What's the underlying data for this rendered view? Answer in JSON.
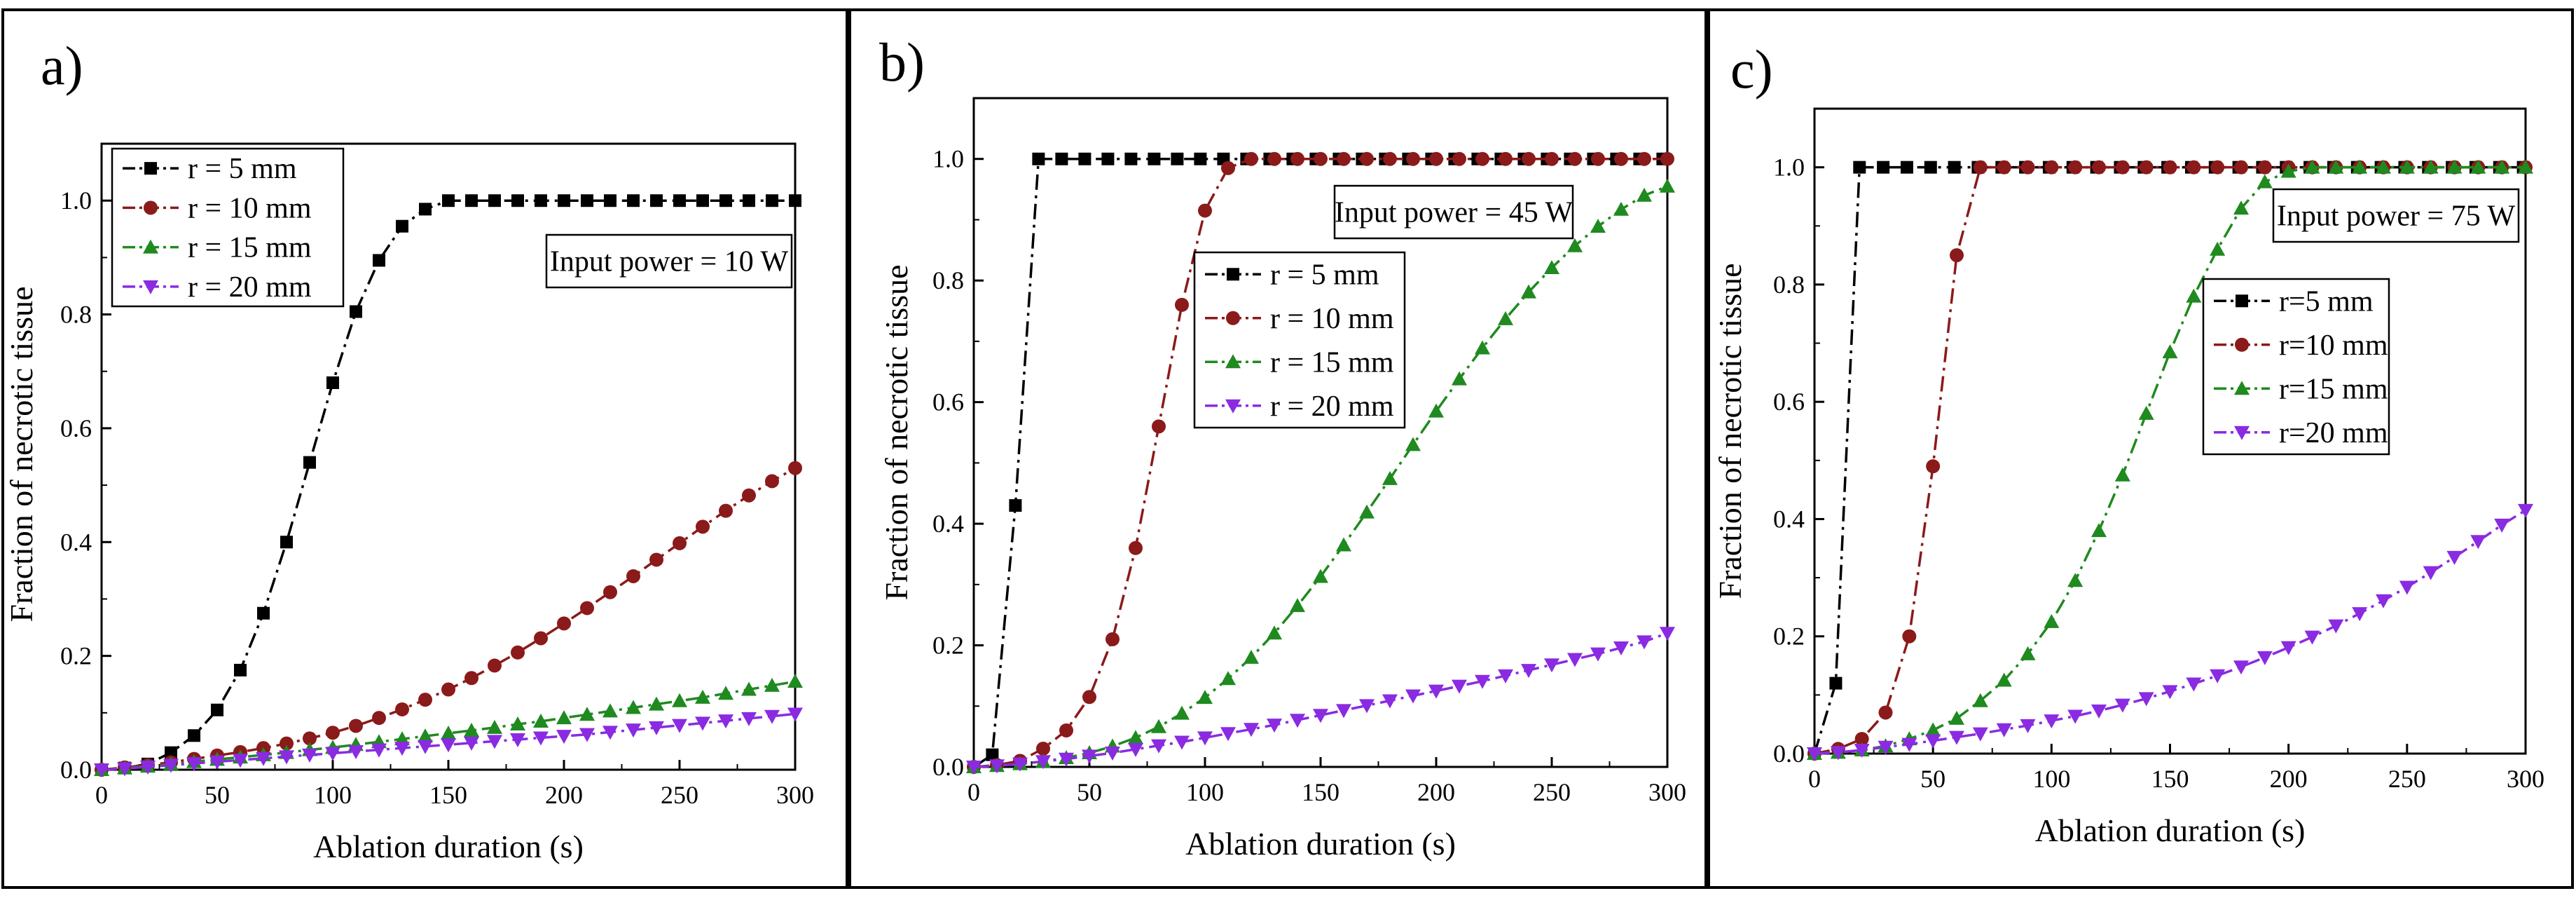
{
  "figure": {
    "panel_labels": [
      "a)",
      "b)",
      "c)"
    ]
  },
  "chart_data": [
    {
      "type": "line",
      "panel": "a)",
      "xlabel": "Ablation duration (s)",
      "ylabel": "Fraction of necrotic tissue",
      "xlim": [
        0,
        300
      ],
      "ylim": [
        0,
        1.1
      ],
      "xticks": [
        0,
        50,
        100,
        150,
        200,
        250,
        300
      ],
      "yticks": [
        0.0,
        0.2,
        0.4,
        0.6,
        0.8,
        1.0
      ],
      "annotation": "Input power = 10 W",
      "legend_position": "top-left",
      "series": [
        {
          "name": "r = 5   mm",
          "color": "#000000",
          "marker": "square",
          "dash": "dashdot",
          "x": [
            0,
            10,
            20,
            30,
            40,
            50,
            60,
            70,
            80,
            90,
            100,
            110,
            120,
            130,
            140,
            150,
            160,
            170,
            180,
            190,
            200,
            210,
            220,
            230,
            240,
            250,
            260,
            270,
            280,
            290,
            300
          ],
          "y": [
            0,
            0.003,
            0.01,
            0.03,
            0.06,
            0.105,
            0.175,
            0.275,
            0.4,
            0.54,
            0.68,
            0.805,
            0.895,
            0.955,
            0.985,
            1.0,
            1.0,
            1.0,
            1.0,
            1.0,
            1.0,
            1.0,
            1.0,
            1.0,
            1.0,
            1.0,
            1.0,
            1.0,
            1.0,
            1.0,
            1.0
          ]
        },
        {
          "name": "r = 10 mm",
          "color": "#8b1a1a",
          "marker": "circle",
          "dash": "dashdot",
          "x": [
            0,
            10,
            20,
            30,
            40,
            50,
            60,
            70,
            80,
            90,
            100,
            110,
            120,
            130,
            140,
            150,
            160,
            170,
            180,
            190,
            200,
            210,
            220,
            230,
            240,
            250,
            260,
            270,
            280,
            290,
            300
          ],
          "y": [
            0,
            0.004,
            0.008,
            0.013,
            0.019,
            0.025,
            0.031,
            0.038,
            0.046,
            0.055,
            0.065,
            0.077,
            0.091,
            0.106,
            0.123,
            0.141,
            0.161,
            0.183,
            0.206,
            0.231,
            0.257,
            0.284,
            0.312,
            0.34,
            0.369,
            0.398,
            0.427,
            0.455,
            0.482,
            0.507,
            0.53
          ]
        },
        {
          "name": "r = 15 mm",
          "color": "#1f8a1f",
          "marker": "triangle-up",
          "dash": "dashdot",
          "x": [
            0,
            10,
            20,
            30,
            40,
            50,
            60,
            70,
            80,
            90,
            100,
            110,
            120,
            130,
            140,
            150,
            160,
            170,
            180,
            190,
            200,
            210,
            220,
            230,
            240,
            250,
            260,
            270,
            280,
            290,
            300
          ],
          "y": [
            0,
            0.003,
            0.006,
            0.01,
            0.014,
            0.018,
            0.022,
            0.026,
            0.03,
            0.035,
            0.039,
            0.044,
            0.049,
            0.054,
            0.059,
            0.064,
            0.069,
            0.074,
            0.08,
            0.085,
            0.091,
            0.097,
            0.103,
            0.109,
            0.115,
            0.121,
            0.127,
            0.134,
            0.141,
            0.148,
            0.155
          ]
        },
        {
          "name": "r = 20 mm",
          "color": "#8a2be2",
          "marker": "triangle-down",
          "dash": "dashdot",
          "x": [
            0,
            10,
            20,
            30,
            40,
            50,
            60,
            70,
            80,
            90,
            100,
            110,
            120,
            130,
            140,
            150,
            160,
            170,
            180,
            190,
            200,
            210,
            220,
            230,
            240,
            250,
            260,
            270,
            280,
            290,
            300
          ],
          "y": [
            0,
            0.002,
            0.005,
            0.008,
            0.011,
            0.014,
            0.017,
            0.02,
            0.023,
            0.026,
            0.029,
            0.032,
            0.035,
            0.038,
            0.041,
            0.044,
            0.047,
            0.05,
            0.053,
            0.056,
            0.059,
            0.062,
            0.066,
            0.07,
            0.074,
            0.078,
            0.082,
            0.086,
            0.09,
            0.094,
            0.098
          ]
        }
      ]
    },
    {
      "type": "line",
      "panel": "b)",
      "xlabel": "Ablation duration (s)",
      "ylabel": "Fraction of necrotic tissue",
      "xlim": [
        0,
        300
      ],
      "ylim": [
        0,
        1.1
      ],
      "xticks": [
        0,
        50,
        100,
        150,
        200,
        250,
        300
      ],
      "yticks": [
        0.0,
        0.2,
        0.4,
        0.6,
        0.8,
        1.0
      ],
      "annotation": "Input power = 45 W",
      "legend_position": "center-left",
      "series": [
        {
          "name": "r = 5   mm",
          "color": "#000000",
          "marker": "square",
          "dash": "dashdot",
          "x": [
            0,
            8,
            18,
            28,
            38,
            48,
            58,
            68,
            78,
            88,
            98,
            108,
            118,
            128,
            138,
            148,
            158,
            168,
            178,
            188,
            198,
            208,
            218,
            228,
            238,
            248,
            258,
            268,
            278,
            288,
            298
          ],
          "y": [
            0,
            0.02,
            0.43,
            1.0,
            1.0,
            1.0,
            1.0,
            1.0,
            1.0,
            1.0,
            1.0,
            1.0,
            1.0,
            1.0,
            1.0,
            1.0,
            1.0,
            1.0,
            1.0,
            1.0,
            1.0,
            1.0,
            1.0,
            1.0,
            1.0,
            1.0,
            1.0,
            1.0,
            1.0,
            1.0,
            1.0
          ]
        },
        {
          "name": "r = 10 mm",
          "color": "#8b1a1a",
          "marker": "circle",
          "dash": "dashdot",
          "x": [
            0,
            10,
            20,
            30,
            40,
            50,
            60,
            70,
            80,
            90,
            100,
            110,
            120,
            130,
            140,
            150,
            160,
            170,
            180,
            190,
            200,
            210,
            220,
            230,
            240,
            250,
            260,
            270,
            280,
            290,
            300
          ],
          "y": [
            0,
            0.003,
            0.01,
            0.03,
            0.06,
            0.115,
            0.21,
            0.36,
            0.56,
            0.76,
            0.915,
            0.985,
            1.0,
            1.0,
            1.0,
            1.0,
            1.0,
            1.0,
            1.0,
            1.0,
            1.0,
            1.0,
            1.0,
            1.0,
            1.0,
            1.0,
            1.0,
            1.0,
            1.0,
            1.0,
            1.0
          ]
        },
        {
          "name": "r = 15 mm",
          "color": "#1f8a1f",
          "marker": "triangle-up",
          "dash": "dashdot",
          "x": [
            0,
            10,
            20,
            30,
            40,
            50,
            60,
            70,
            80,
            90,
            100,
            110,
            120,
            130,
            140,
            150,
            160,
            170,
            180,
            190,
            200,
            210,
            220,
            230,
            240,
            250,
            260,
            270,
            280,
            290,
            300
          ],
          "y": [
            0,
            0.002,
            0.005,
            0.009,
            0.015,
            0.023,
            0.034,
            0.048,
            0.066,
            0.088,
            0.114,
            0.145,
            0.18,
            0.22,
            0.265,
            0.313,
            0.365,
            0.419,
            0.474,
            0.53,
            0.585,
            0.638,
            0.689,
            0.737,
            0.781,
            0.821,
            0.857,
            0.889,
            0.917,
            0.94,
            0.955
          ]
        },
        {
          "name": "r = 20 mm",
          "color": "#8a2be2",
          "marker": "triangle-down",
          "dash": "dashdot",
          "x": [
            0,
            10,
            20,
            30,
            40,
            50,
            60,
            70,
            80,
            90,
            100,
            110,
            120,
            130,
            140,
            150,
            160,
            170,
            180,
            190,
            200,
            210,
            220,
            230,
            240,
            250,
            260,
            270,
            280,
            290,
            300
          ],
          "y": [
            0,
            0.002,
            0.005,
            0.009,
            0.013,
            0.018,
            0.023,
            0.029,
            0.035,
            0.041,
            0.048,
            0.055,
            0.062,
            0.069,
            0.077,
            0.085,
            0.093,
            0.101,
            0.109,
            0.117,
            0.125,
            0.133,
            0.141,
            0.15,
            0.159,
            0.168,
            0.177,
            0.186,
            0.196,
            0.206,
            0.22
          ]
        }
      ]
    },
    {
      "type": "line",
      "panel": "c)",
      "xlabel": "Ablation duration (s)",
      "ylabel": "Fraction of necrotic tissue",
      "xlim": [
        0,
        300
      ],
      "ylim": [
        0,
        1.1
      ],
      "xticks": [
        0,
        50,
        100,
        150,
        200,
        250,
        300
      ],
      "yticks": [
        0.0,
        0.2,
        0.4,
        0.6,
        0.8,
        1.0
      ],
      "annotation": "Input power = 75 W",
      "legend_position": "center-right",
      "series": [
        {
          "name": "r=5   mm",
          "color": "#000000",
          "marker": "square",
          "dash": "dashdot",
          "x": [
            0,
            9,
            19,
            29,
            39,
            49,
            59,
            69,
            79,
            89,
            99,
            109,
            119,
            129,
            139,
            149,
            159,
            169,
            179,
            189,
            199,
            209,
            219,
            229,
            239,
            249,
            259,
            269,
            279,
            289,
            299
          ],
          "y": [
            0,
            0.12,
            1.0,
            1.0,
            1.0,
            1.0,
            1.0,
            1.0,
            1.0,
            1.0,
            1.0,
            1.0,
            1.0,
            1.0,
            1.0,
            1.0,
            1.0,
            1.0,
            1.0,
            1.0,
            1.0,
            1.0,
            1.0,
            1.0,
            1.0,
            1.0,
            1.0,
            1.0,
            1.0,
            1.0,
            1.0
          ]
        },
        {
          "name": "r=10 mm",
          "color": "#8b1a1a",
          "marker": "circle",
          "dash": "dashdot",
          "x": [
            0,
            10,
            20,
            30,
            40,
            50,
            60,
            70,
            80,
            90,
            100,
            110,
            120,
            130,
            140,
            150,
            160,
            170,
            180,
            190,
            200,
            210,
            220,
            230,
            240,
            250,
            260,
            270,
            280,
            290,
            300
          ],
          "y": [
            0,
            0.008,
            0.025,
            0.07,
            0.2,
            0.49,
            0.85,
            1.0,
            1.0,
            1.0,
            1.0,
            1.0,
            1.0,
            1.0,
            1.0,
            1.0,
            1.0,
            1.0,
            1.0,
            1.0,
            1.0,
            1.0,
            1.0,
            1.0,
            1.0,
            1.0,
            1.0,
            1.0,
            1.0,
            1.0,
            1.0
          ]
        },
        {
          "name": "r=15 mm",
          "color": "#1f8a1f",
          "marker": "triangle-up",
          "dash": "dashdot",
          "x": [
            0,
            10,
            20,
            30,
            40,
            50,
            60,
            70,
            80,
            90,
            100,
            110,
            120,
            130,
            140,
            150,
            160,
            170,
            180,
            190,
            200,
            210,
            220,
            230,
            240,
            250,
            260,
            270,
            280,
            290,
            300
          ],
          "y": [
            0,
            0.002,
            0.006,
            0.013,
            0.025,
            0.04,
            0.06,
            0.09,
            0.125,
            0.17,
            0.225,
            0.295,
            0.38,
            0.475,
            0.58,
            0.685,
            0.78,
            0.86,
            0.93,
            0.975,
            0.993,
            1.0,
            1.0,
            1.0,
            1.0,
            1.0,
            1.0,
            1.0,
            1.0,
            1.0,
            1.0
          ]
        },
        {
          "name": "r=20 mm",
          "color": "#8a2be2",
          "marker": "triangle-down",
          "dash": "dashdot",
          "x": [
            0,
            10,
            20,
            30,
            40,
            50,
            60,
            70,
            80,
            90,
            100,
            110,
            120,
            130,
            140,
            150,
            160,
            170,
            180,
            190,
            200,
            210,
            220,
            230,
            240,
            250,
            260,
            270,
            280,
            290,
            300
          ],
          "y": [
            0,
            0.002,
            0.006,
            0.011,
            0.016,
            0.022,
            0.028,
            0.034,
            0.041,
            0.048,
            0.056,
            0.064,
            0.073,
            0.083,
            0.094,
            0.106,
            0.119,
            0.133,
            0.148,
            0.164,
            0.181,
            0.199,
            0.218,
            0.239,
            0.261,
            0.284,
            0.309,
            0.335,
            0.362,
            0.39,
            0.415
          ]
        }
      ]
    }
  ]
}
